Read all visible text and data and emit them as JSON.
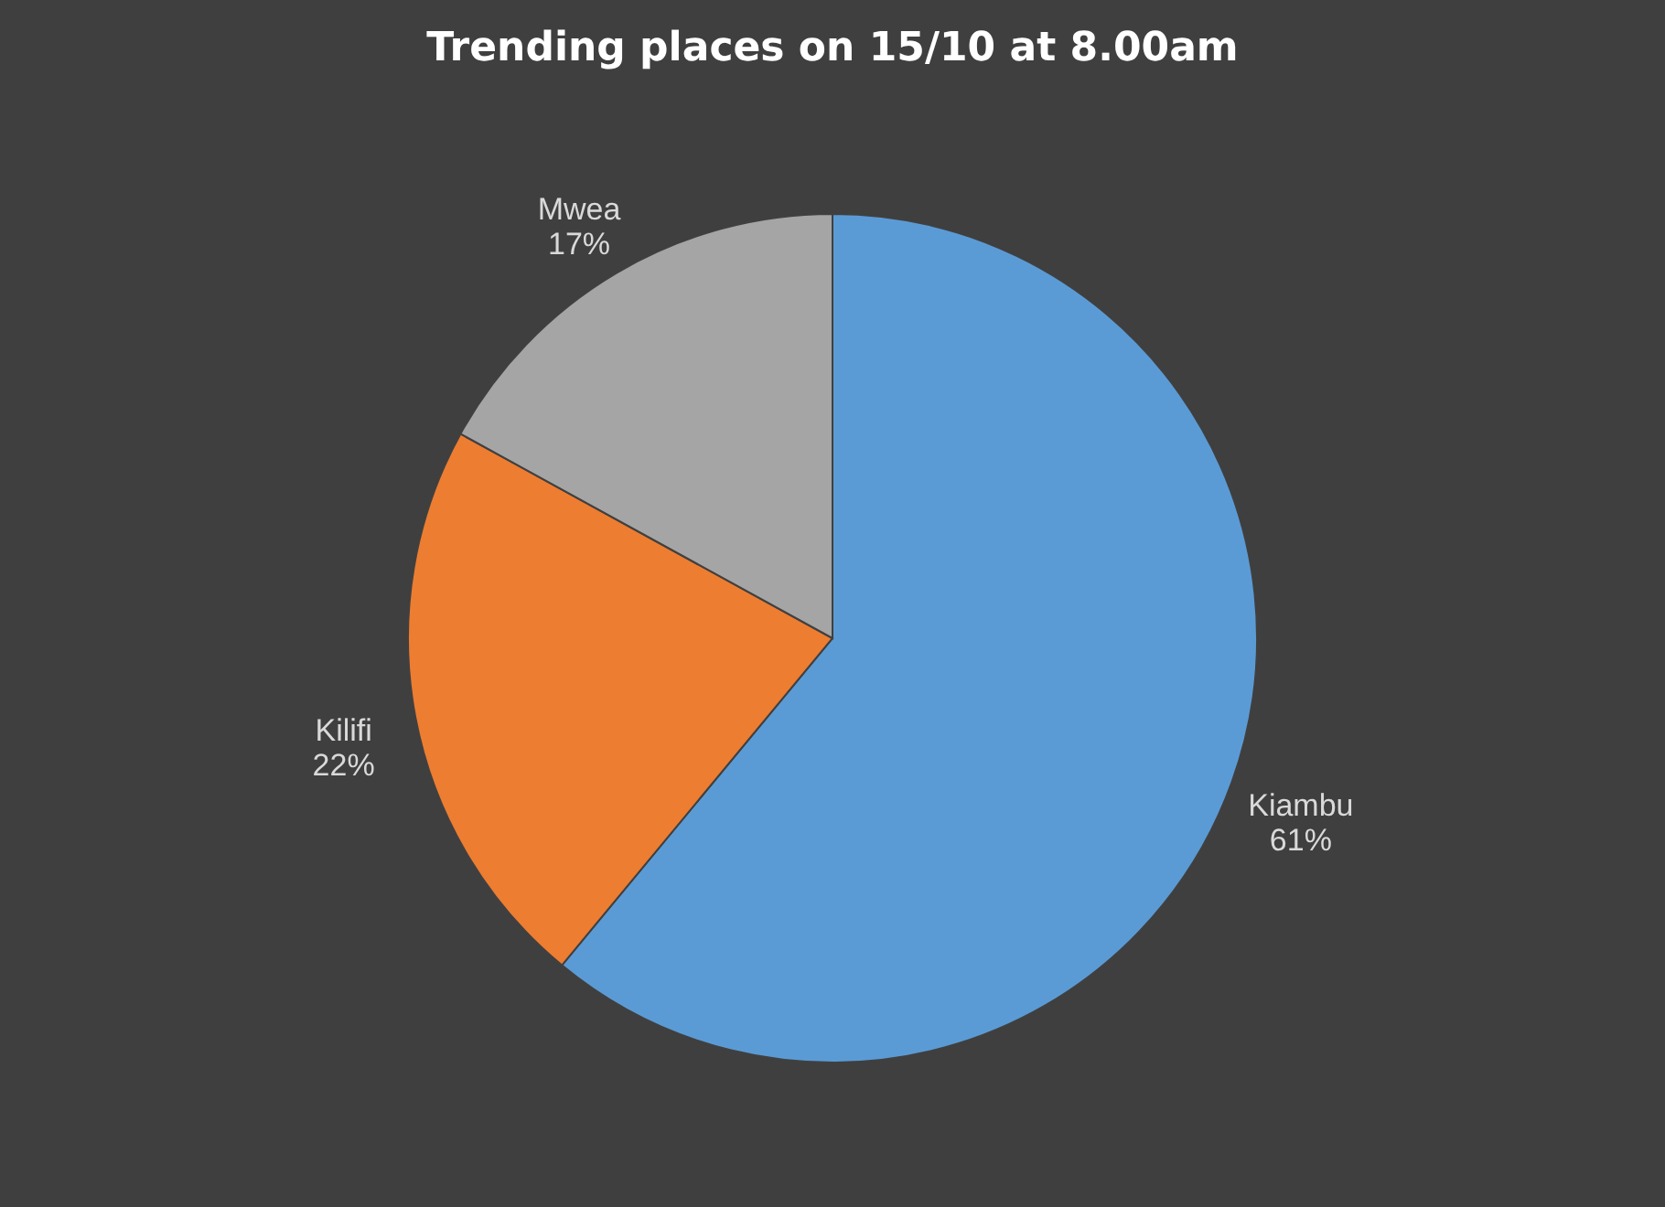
{
  "chart_data": {
    "type": "pie",
    "title": "Trending places on 15/10  at 8.00am",
    "categories": [
      "Kiambu",
      "Kilifi",
      "Mwea"
    ],
    "values": [
      61,
      22,
      17
    ],
    "colors": [
      "#5b9bd5",
      "#ed7d31",
      "#a5a5a5"
    ],
    "value_labels": [
      "61%",
      "22%",
      "17%"
    ],
    "legend": false
  }
}
